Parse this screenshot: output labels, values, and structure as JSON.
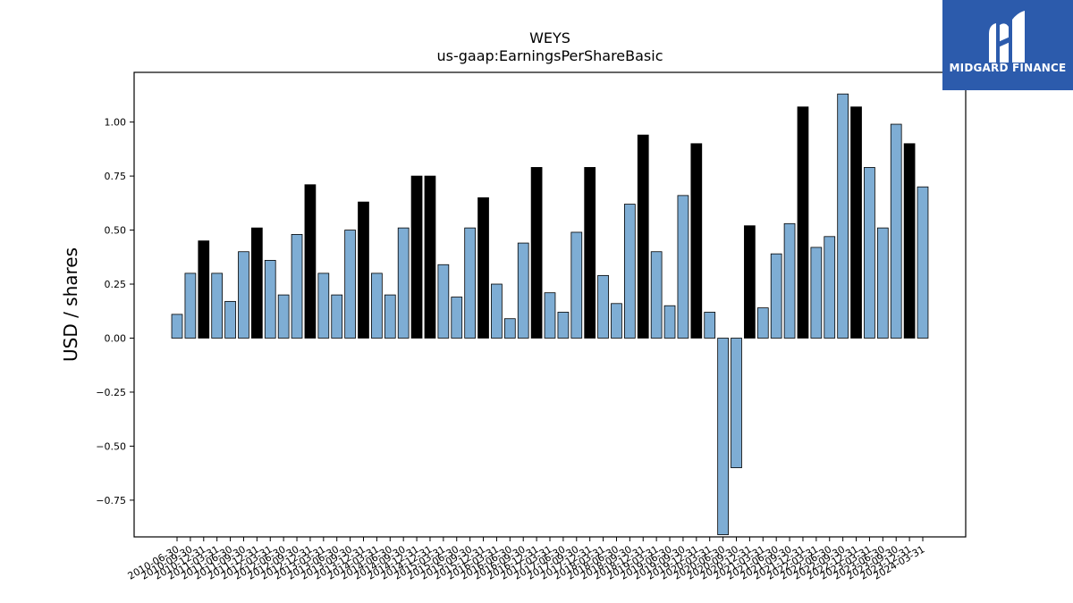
{
  "logo": {
    "text": "MIDGARD FINANCE",
    "icon": "midgard-logo-icon",
    "background": "#2c5bac"
  },
  "chart_data": {
    "type": "bar",
    "title": "WEYS",
    "subtitle": "us-gaap:EarningsPerShareBasic",
    "xlabel": "",
    "ylabel": "USD / shares",
    "ylim": [
      -0.92,
      1.23
    ],
    "yticks": [
      -0.75,
      -0.5,
      -0.25,
      0.0,
      0.25,
      0.5,
      0.75,
      1.0
    ],
    "ytick_labels": [
      "−0.75",
      "−0.50",
      "−0.25",
      "0.00",
      "0.25",
      "0.50",
      "0.75",
      "1.00"
    ],
    "grid": false,
    "colors": {
      "quarter": "#7eadd4",
      "annual": "#000000",
      "edge": "#000000"
    },
    "categories": [
      "2010-06-30",
      "2010-09-30",
      "2010-12-31",
      "2011-03-31",
      "2011-06-30",
      "2011-09-30",
      "2011-12-31",
      "2012-03-31",
      "2012-06-30",
      "2012-09-30",
      "2012-12-31",
      "2013-03-31",
      "2013-06-30",
      "2013-09-30",
      "2013-12-31",
      "2014-03-31",
      "2014-06-30",
      "2014-09-30",
      "2014-12-31",
      "2014-12-31",
      "2015-03-31",
      "2015-06-30",
      "2015-09-30",
      "2015-12-31",
      "2016-03-31",
      "2016-06-30",
      "2016-09-30",
      "2016-12-31",
      "2017-03-31",
      "2017-06-30",
      "2017-09-30",
      "2017-12-31",
      "2018-03-31",
      "2018-06-30",
      "2018-09-30",
      "2018-12-31",
      "2019-03-31",
      "2019-06-30",
      "2019-09-30",
      "2019-12-31",
      "2020-03-31",
      "2020-06-30",
      "2020-09-30",
      "2020-12-31",
      "2021-03-31",
      "2021-06-30",
      "2021-09-30",
      "2021-12-31",
      "2022-03-31",
      "2022-06-30",
      "2022-09-30",
      "2022-12-31",
      "2023-03-31",
      "2023-06-30",
      "2023-09-30",
      "2023-12-31",
      "2024-03-31"
    ],
    "values": [
      0.11,
      0.3,
      0.45,
      0.3,
      0.17,
      0.4,
      0.51,
      0.36,
      0.2,
      0.48,
      0.71,
      0.3,
      0.2,
      0.5,
      0.63,
      0.3,
      0.2,
      0.51,
      0.75,
      0.75,
      0.34,
      0.19,
      0.51,
      0.65,
      0.25,
      0.09,
      0.44,
      0.79,
      0.21,
      0.12,
      0.49,
      0.79,
      0.29,
      0.16,
      0.62,
      0.94,
      0.4,
      0.15,
      0.66,
      0.9,
      0.12,
      -0.91,
      -0.6,
      0.52,
      0.14,
      0.39,
      0.53,
      1.07,
      0.42,
      0.47,
      1.13,
      1.07,
      0.79,
      0.51,
      0.99,
      0.9,
      0.7
    ],
    "annual": [
      false,
      false,
      true,
      false,
      false,
      false,
      true,
      false,
      false,
      false,
      true,
      false,
      false,
      false,
      true,
      false,
      false,
      false,
      true,
      true,
      false,
      false,
      false,
      true,
      false,
      false,
      false,
      true,
      false,
      false,
      false,
      true,
      false,
      false,
      false,
      true,
      false,
      false,
      false,
      true,
      false,
      false,
      false,
      true,
      false,
      false,
      false,
      true,
      false,
      false,
      false,
      true,
      false,
      false,
      false,
      true,
      false
    ]
  }
}
